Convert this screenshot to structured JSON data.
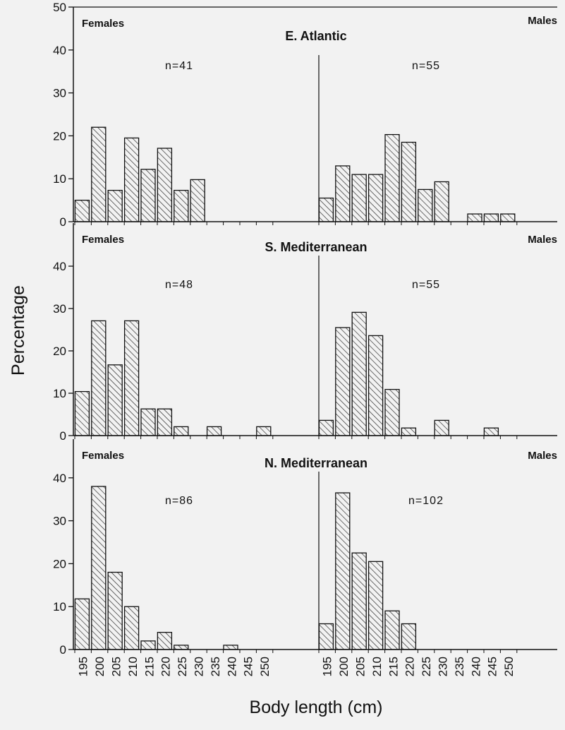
{
  "chart_data": {
    "type": "bar",
    "ylabel": "Percentage",
    "xlabel": "Body length (cm)",
    "categories": [
      "195",
      "200",
      "205",
      "210",
      "215",
      "220",
      "225",
      "230",
      "235",
      "240",
      "245",
      "250"
    ],
    "ylim": [
      0,
      50
    ],
    "yticks": [
      0,
      10,
      20,
      30,
      40,
      50
    ],
    "grid": false,
    "panels": [
      {
        "title": "E. Atlantic",
        "yticks": [
          0,
          10,
          20,
          30,
          40,
          50
        ],
        "females": {
          "label": "Females",
          "n": "n=41",
          "values": [
            5,
            22,
            7.3,
            19.5,
            12.2,
            17.1,
            7.3,
            9.8,
            0,
            0,
            0,
            0
          ]
        },
        "males": {
          "label": "Males",
          "n": "n=55",
          "values": [
            5.5,
            13,
            11,
            11,
            20.3,
            18.5,
            7.5,
            9.3,
            0,
            1.8,
            1.8,
            1.8
          ]
        }
      },
      {
        "title": "S. Mediterranean",
        "yticks": [
          0,
          10,
          20,
          30,
          40
        ],
        "females": {
          "label": "Females",
          "n": "n=48",
          "values": [
            10.4,
            27.1,
            16.7,
            27.1,
            6.3,
            6.3,
            2.1,
            0,
            2.1,
            0,
            0,
            2.1
          ]
        },
        "males": {
          "label": "Males",
          "n": "n=55",
          "values": [
            3.6,
            25.5,
            29.1,
            23.6,
            10.9,
            1.8,
            0,
            3.6,
            0,
            0,
            1.8,
            0
          ]
        }
      },
      {
        "title": "N. Mediterranean",
        "yticks": [
          0,
          10,
          20,
          30,
          40
        ],
        "females": {
          "label": "Females",
          "n": "n=86",
          "values": [
            11.8,
            38,
            18,
            10,
            2,
            4,
            1,
            0,
            0,
            1,
            0,
            0
          ]
        },
        "males": {
          "label": "Males",
          "n": "n=102",
          "values": [
            6,
            36.5,
            22.5,
            20.5,
            9,
            6,
            0,
            0,
            0,
            0,
            0,
            0
          ]
        }
      }
    ]
  }
}
